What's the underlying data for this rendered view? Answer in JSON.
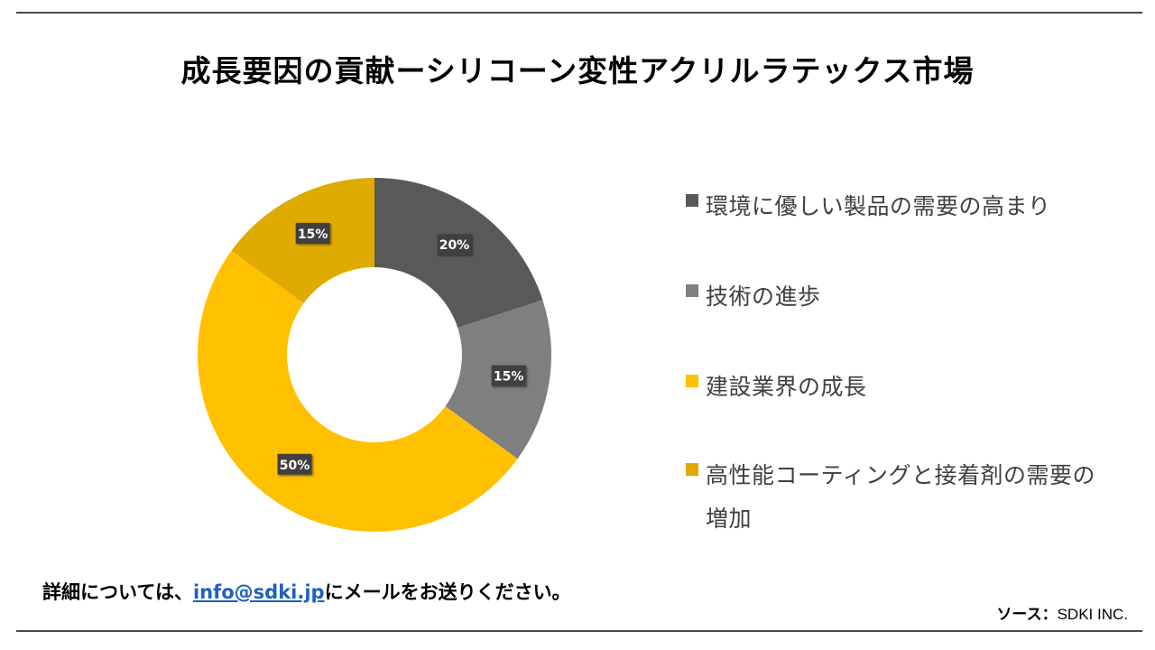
{
  "title": "成長要因の貢献ーシリコーン変性アクリルラテックス市場",
  "chart_data": {
    "type": "pie",
    "donut": true,
    "legend_position": "right",
    "categories": [
      "環境に優しい製品の需要の高まり",
      "技術の進歩",
      "建設業界の成長",
      "高性能コーティングと接着剤の需要の増加"
    ],
    "values": [
      20,
      15,
      50,
      15
    ],
    "data_labels": [
      "20%",
      "15%",
      "50%",
      "15%"
    ],
    "colors": [
      "#595959",
      "#7f7f7f",
      "#ffc000",
      "#e0ab00"
    ]
  },
  "footer": {
    "contact_prefix": "詳細については、",
    "contact_email": "info@sdki.jp",
    "contact_suffix": "にメールをお送りください。",
    "source_label": "ソース：",
    "source_value": "SDKI INC."
  }
}
